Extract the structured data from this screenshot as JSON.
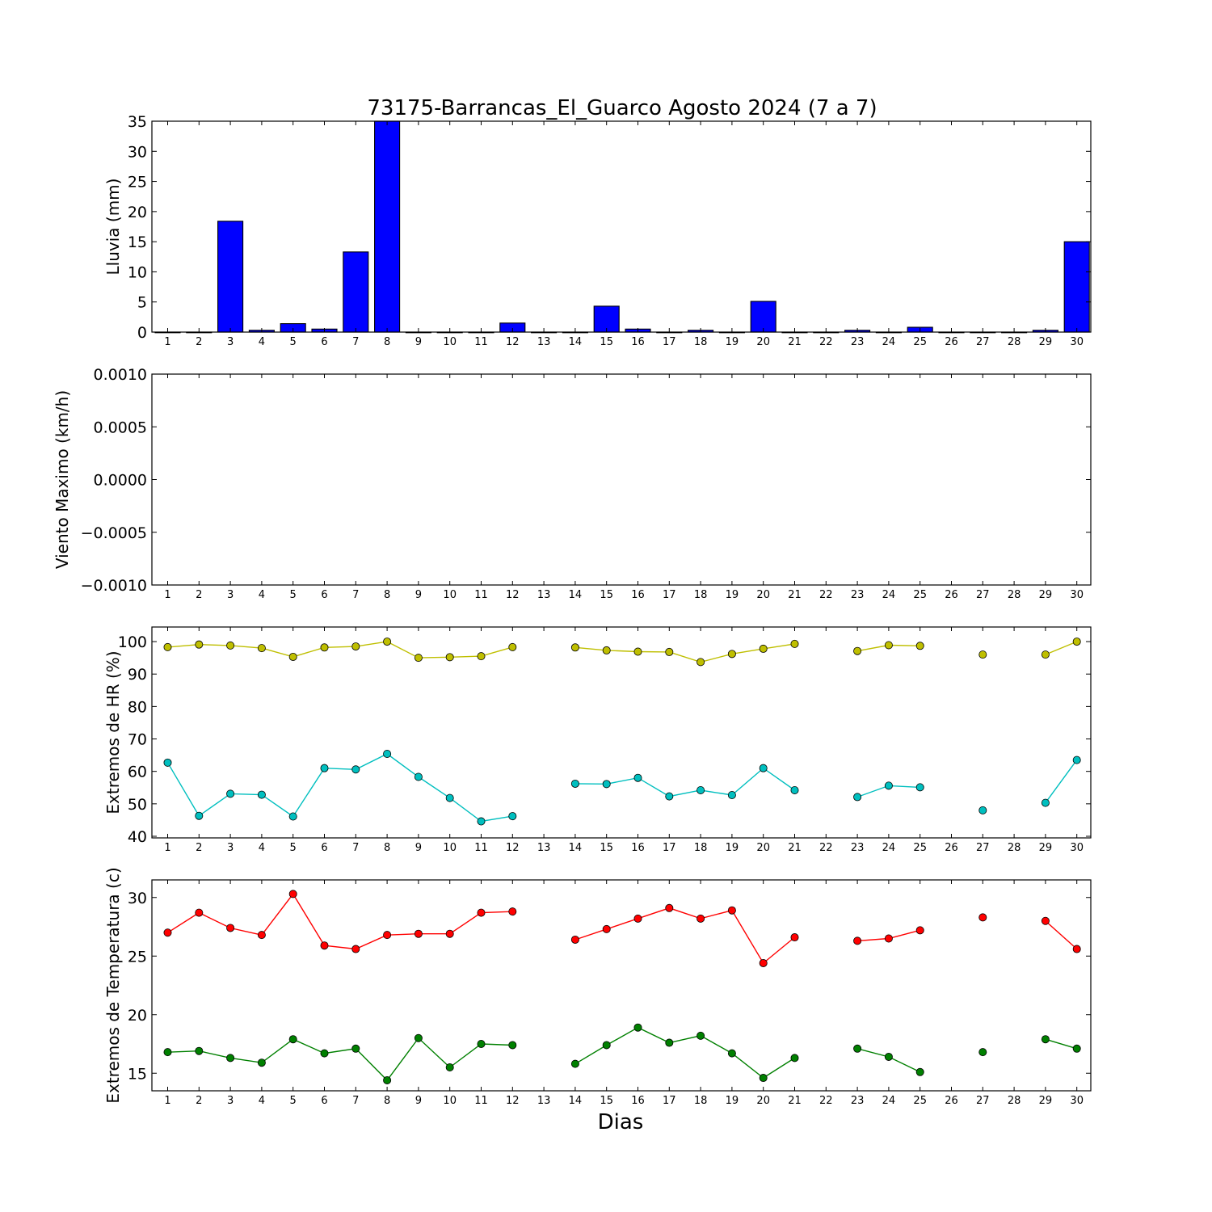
{
  "title": "73175-Barrancas_El_Guarco Agosto 2024  (7 a 7)",
  "xlabel": "Dias",
  "chart_data": [
    {
      "type": "bar",
      "ylabel": "Lluvia (mm)",
      "ylim": [
        0,
        35
      ],
      "yticks": [
        "0",
        "5",
        "10",
        "15",
        "20",
        "25",
        "30",
        "35"
      ],
      "categories": [
        "1",
        "2",
        "3",
        "4",
        "5",
        "6",
        "7",
        "8",
        "9",
        "10",
        "11",
        "12",
        "13",
        "14",
        "15",
        "16",
        "17",
        "18",
        "19",
        "20",
        "21",
        "22",
        "23",
        "24",
        "25",
        "26",
        "27",
        "28",
        "29",
        "30"
      ],
      "series": [
        {
          "color": "#0000ff",
          "values": [
            0,
            0,
            18.4,
            0.3,
            1.4,
            0.5,
            13.3,
            35,
            0,
            0,
            0,
            1.5,
            0,
            0,
            4.3,
            0.5,
            0,
            0.3,
            0,
            5.1,
            0,
            0,
            0.3,
            0,
            0.8,
            0,
            0,
            0,
            0.3,
            15.0
          ]
        }
      ]
    },
    {
      "type": "line",
      "ylabel": "Viento Maximo (km/h)",
      "ylim": [
        -0.001,
        0.001
      ],
      "yticks": [
        "−0.0010",
        "−0.0005",
        "0.0000",
        "0.0005",
        "0.0010"
      ],
      "categories": [
        "1",
        "2",
        "3",
        "4",
        "5",
        "6",
        "7",
        "8",
        "9",
        "10",
        "11",
        "12",
        "13",
        "14",
        "15",
        "16",
        "17",
        "18",
        "19",
        "20",
        "21",
        "22",
        "23",
        "24",
        "25",
        "26",
        "27",
        "28",
        "29",
        "30"
      ],
      "series": []
    },
    {
      "type": "line",
      "ylabel": "Extremos de HR (%)",
      "ylim": [
        39.5,
        104.5
      ],
      "yticks": [
        "40",
        "50",
        "60",
        "70",
        "80",
        "90",
        "100"
      ],
      "categories": [
        "1",
        "2",
        "3",
        "4",
        "5",
        "6",
        "7",
        "8",
        "9",
        "10",
        "11",
        "12",
        "13",
        "14",
        "15",
        "16",
        "17",
        "18",
        "19",
        "20",
        "21",
        "22",
        "23",
        "24",
        "25",
        "26",
        "27",
        "28",
        "29",
        "30"
      ],
      "series": [
        {
          "color": "#bfbf00",
          "values": [
            98.3,
            99.1,
            98.8,
            98.0,
            95.3,
            98.2,
            98.5,
            100,
            95.0,
            95.2,
            95.5,
            98.3,
            null,
            98.2,
            97.3,
            96.9,
            96.8,
            93.7,
            96.2,
            97.8,
            99.3,
            null,
            97.1,
            98.9,
            98.7,
            null,
            96.0,
            null,
            96.0,
            100
          ]
        },
        {
          "color": "#00bfbf",
          "values": [
            62.7,
            46.3,
            53.1,
            52.8,
            46.1,
            61.0,
            60.6,
            65.4,
            58.3,
            51.8,
            44.6,
            46.2,
            null,
            56.2,
            56.1,
            58.0,
            52.3,
            54.2,
            52.7,
            61.0,
            54.2,
            null,
            52.1,
            55.6,
            55.1,
            null,
            48.0,
            null,
            50.3,
            63.5
          ]
        }
      ]
    },
    {
      "type": "line",
      "ylabel": "Extremos de Temperatura (c)",
      "ylim": [
        13.5,
        31.5
      ],
      "yticks": [
        "15",
        "20",
        "25",
        "30"
      ],
      "categories": [
        "1",
        "2",
        "3",
        "4",
        "5",
        "6",
        "7",
        "8",
        "9",
        "10",
        "11",
        "12",
        "13",
        "14",
        "15",
        "16",
        "17",
        "18",
        "19",
        "20",
        "21",
        "22",
        "23",
        "24",
        "25",
        "26",
        "27",
        "28",
        "29",
        "30"
      ],
      "series": [
        {
          "color": "#ff0000",
          "values": [
            27.0,
            28.7,
            27.4,
            26.8,
            30.3,
            25.9,
            25.6,
            26.8,
            26.9,
            26.9,
            28.7,
            28.8,
            null,
            26.4,
            27.3,
            28.2,
            29.1,
            28.2,
            28.9,
            24.4,
            26.6,
            null,
            26.3,
            26.5,
            27.2,
            null,
            28.3,
            null,
            28.0,
            25.6
          ]
        },
        {
          "color": "#008000",
          "values": [
            16.8,
            16.9,
            16.3,
            15.9,
            17.9,
            16.7,
            17.1,
            14.4,
            18.0,
            15.5,
            17.5,
            17.4,
            null,
            15.8,
            17.4,
            18.9,
            17.6,
            18.2,
            16.7,
            14.6,
            16.3,
            null,
            17.1,
            16.4,
            15.1,
            null,
            16.8,
            null,
            17.9,
            17.1
          ]
        }
      ]
    }
  ]
}
